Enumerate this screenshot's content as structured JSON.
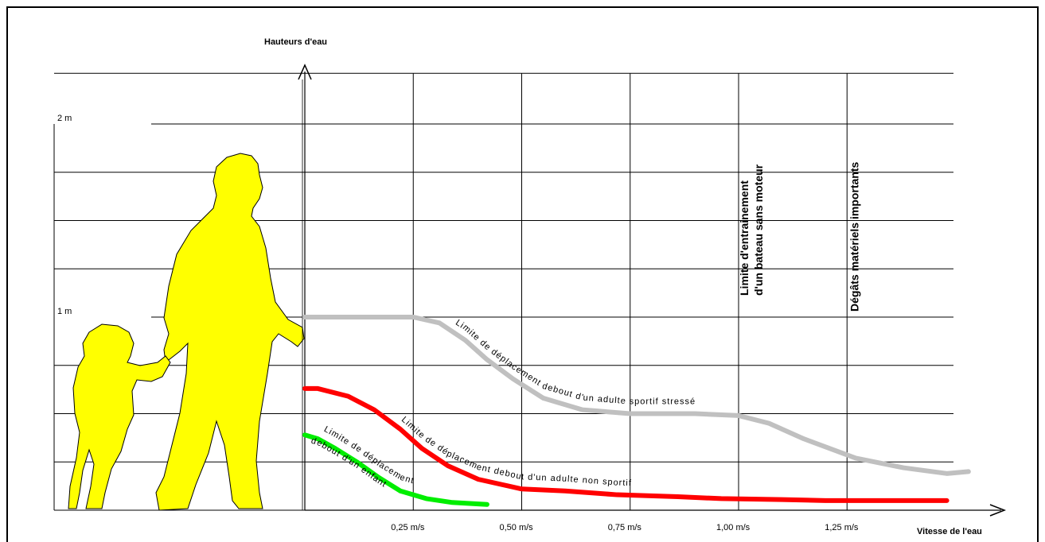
{
  "chart_data": {
    "type": "line",
    "title": "",
    "ylabel": "Hauteurs d'eau",
    "xlabel": "Vitesse de l'eau",
    "x_ticks": [
      {
        "value": 0.25,
        "label": "0,25 m/s"
      },
      {
        "value": 0.5,
        "label": "0,50 m/s"
      },
      {
        "value": 0.75,
        "label": "0,75 m/s"
      },
      {
        "value": 1.0,
        "label": "1,00 m/s"
      },
      {
        "value": 1.25,
        "label": "1,25 m/s"
      }
    ],
    "y_ticks": [
      {
        "value": 1,
        "label": "1 m"
      },
      {
        "value": 2,
        "label": "2 m"
      }
    ],
    "xlim": [
      0,
      1.5
    ],
    "ylim": [
      0,
      2
    ],
    "grid": true,
    "series": [
      {
        "name": "Limite de déplacement debout d'un adulte sportif stressé",
        "color": "#c0c0c0",
        "x": [
          0,
          0.1,
          0.25,
          0.31,
          0.37,
          0.42,
          0.48,
          0.55,
          0.64,
          0.75,
          0.9,
          1.0,
          1.07,
          1.15,
          1.27,
          1.38,
          1.48,
          1.53
        ],
        "y": [
          1.0,
          1.0,
          1.0,
          0.97,
          0.88,
          0.78,
          0.68,
          0.58,
          0.52,
          0.5,
          0.5,
          0.49,
          0.45,
          0.37,
          0.27,
          0.22,
          0.19,
          0.2
        ]
      },
      {
        "name": "Limite de déplacement debout d'un adulte non sportif",
        "color": "#ff0000",
        "x": [
          0,
          0.03,
          0.1,
          0.16,
          0.22,
          0.27,
          0.33,
          0.4,
          0.5,
          0.6,
          0.72,
          0.86,
          0.96,
          1.1,
          1.2,
          1.3,
          1.4,
          1.48
        ],
        "y": [
          0.63,
          0.63,
          0.59,
          0.52,
          0.42,
          0.32,
          0.23,
          0.16,
          0.11,
          0.1,
          0.08,
          0.07,
          0.06,
          0.055,
          0.05,
          0.05,
          0.05,
          0.05
        ]
      },
      {
        "name": "Limite de déplacement debout d'un enfant",
        "color": "#00ee00",
        "x": [
          0,
          0.03,
          0.07,
          0.12,
          0.17,
          0.22,
          0.28,
          0.34,
          0.42
        ],
        "y": [
          0.39,
          0.37,
          0.32,
          0.25,
          0.17,
          0.1,
          0.06,
          0.04,
          0.03
        ]
      }
    ],
    "annotations": [
      {
        "text": "Limite d'entrainement",
        "x": 1.0,
        "orientation": "vertical"
      },
      {
        "text": "d'un bateau sans moteur",
        "x": 1.0,
        "orientation": "vertical"
      },
      {
        "text": "Dégâts matériels importants",
        "x": 1.25,
        "orientation": "vertical"
      }
    ],
    "curve_labels": [
      {
        "text": "Limite de déplacement debout d'un adulte sportif stressé",
        "series": 0
      },
      {
        "text": "Limite de déplacement debout d'un adulte non sportif",
        "series": 1
      },
      {
        "text": "Limite de déplacement",
        "series": 2
      },
      {
        "text": "debout d'un enfant",
        "series": 2
      }
    ],
    "figures": [
      {
        "name": "adult-silhouette",
        "color": "#ffff00"
      },
      {
        "name": "child-silhouette",
        "color": "#ffff00"
      }
    ]
  }
}
